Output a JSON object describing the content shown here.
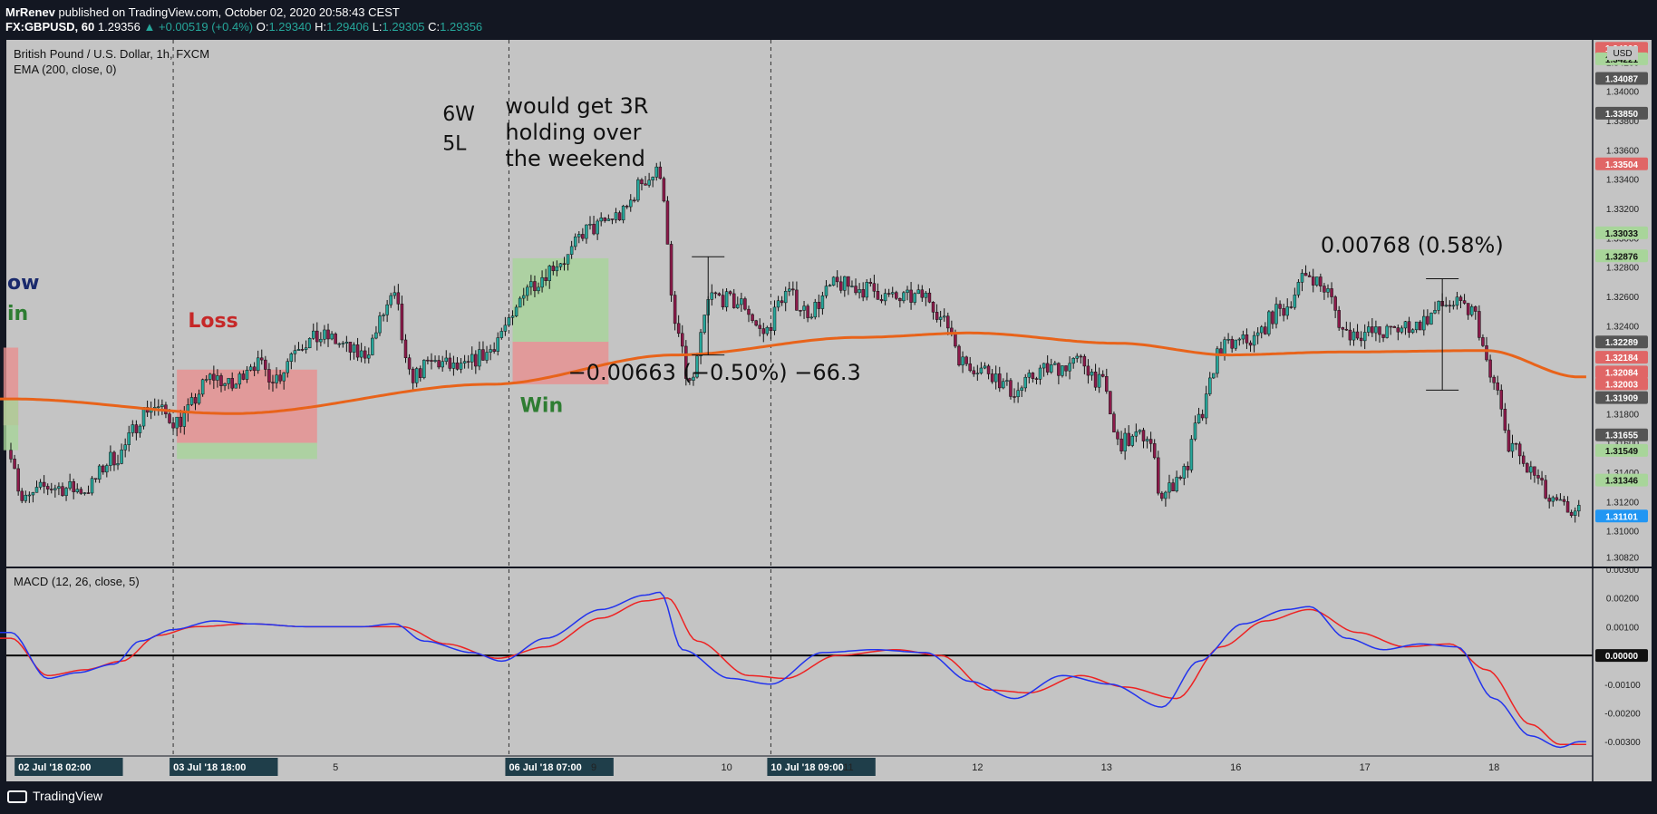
{
  "header": {
    "author": "MrRenev",
    "published_text": "published on TradingView.com, October 02, 2020 20:58:43 CEST",
    "symbol": "FX:GBPUSD, 60",
    "last": "1.29356",
    "change": "+0.00519 (+0.4%)",
    "o_label": "O:",
    "o": "1.29340",
    "h_label": "H:",
    "h": "1.29406",
    "l_label": "L:",
    "l": "1.29305",
    "c_label": "C:",
    "c": "1.29356"
  },
  "footer": {
    "brand": "TradingView"
  },
  "colors": {
    "bg": "#c4c4c4",
    "frame": "#131722",
    "up": "#26a69a",
    "down": "#8b1a4a",
    "ema": "#e8631a",
    "macd": "#2233ee",
    "signal": "#ee2222",
    "loss_zone": "#e89090",
    "win_zone": "#a8d59a"
  },
  "chart_data": [
    {
      "type": "candlestick",
      "title": "British Pound / U.S. Dollar, 1h, FXCM",
      "indicator": "EMA (200, close, 0)",
      "currency": "USD",
      "ylim": [
        1.3075,
        1.3435
      ],
      "y_ticks": [
        "1.30820",
        "1.31000",
        "1.31200",
        "1.31400",
        "1.31600",
        "1.31800",
        "1.32000",
        "1.32200",
        "1.32400",
        "1.32600",
        "1.32800",
        "1.33000",
        "1.33200",
        "1.33400",
        "1.33600",
        "1.33800",
        "1.34000",
        "1.34200",
        "1.34400"
      ],
      "price_labels": [
        {
          "value": "1.34293",
          "color": "#e06666"
        },
        {
          "value": "1.34221",
          "color": "#a8d59a"
        },
        {
          "value": "1.34087",
          "color": "#555555"
        },
        {
          "value": "1.33850",
          "color": "#555555"
        },
        {
          "value": "1.33504",
          "color": "#e06666"
        },
        {
          "value": "1.33033",
          "color": "#a8d59a"
        },
        {
          "value": "1.32876",
          "color": "#a8d59a"
        },
        {
          "value": "1.32289",
          "color": "#555555"
        },
        {
          "value": "1.32184",
          "color": "#e06666"
        },
        {
          "value": "1.32084",
          "color": "#e06666"
        },
        {
          "value": "1.32003",
          "color": "#e06666"
        },
        {
          "value": "1.31909",
          "color": "#555555"
        },
        {
          "value": "1.31655",
          "color": "#555555"
        },
        {
          "value": "1.31549",
          "color": "#a8d59a"
        },
        {
          "value": "1.31346",
          "color": "#a8d59a"
        },
        {
          "value": "1.31101",
          "color": "#2196f3"
        }
      ],
      "price_anchors": [
        [
          0,
          1.3155
        ],
        [
          3,
          1.312
        ],
        [
          10,
          1.313
        ],
        [
          20,
          1.3128
        ],
        [
          28,
          1.315
        ],
        [
          38,
          1.3185
        ],
        [
          45,
          1.3175
        ],
        [
          55,
          1.3205
        ],
        [
          60,
          1.3198
        ],
        [
          65,
          1.3215
        ],
        [
          72,
          1.3205
        ],
        [
          78,
          1.3228
        ],
        [
          85,
          1.3232
        ],
        [
          95,
          1.322
        ],
        [
          104,
          1.3258
        ],
        [
          108,
          1.3205
        ],
        [
          115,
          1.3215
        ],
        [
          122,
          1.321
        ],
        [
          128,
          1.322
        ],
        [
          135,
          1.324
        ],
        [
          140,
          1.3268
        ],
        [
          150,
          1.3285
        ],
        [
          156,
          1.3305
        ],
        [
          165,
          1.3315
        ],
        [
          172,
          1.334
        ],
        [
          176,
          1.3345
        ],
        [
          180,
          1.324
        ],
        [
          184,
          1.32
        ],
        [
          190,
          1.326
        ],
        [
          198,
          1.3255
        ],
        [
          204,
          1.3235
        ],
        [
          210,
          1.3262
        ],
        [
          216,
          1.325
        ],
        [
          224,
          1.3268
        ],
        [
          232,
          1.3265
        ],
        [
          240,
          1.3258
        ],
        [
          248,
          1.326
        ],
        [
          254,
          1.324
        ],
        [
          258,
          1.3215
        ],
        [
          264,
          1.321
        ],
        [
          272,
          1.3195
        ],
        [
          280,
          1.321
        ],
        [
          290,
          1.3215
        ],
        [
          296,
          1.32
        ],
        [
          300,
          1.316
        ],
        [
          308,
          1.3165
        ],
        [
          312,
          1.3125
        ],
        [
          318,
          1.314
        ],
        [
          322,
          1.3175
        ],
        [
          328,
          1.3225
        ],
        [
          336,
          1.323
        ],
        [
          344,
          1.325
        ],
        [
          352,
          1.3275
        ],
        [
          356,
          1.3265
        ],
        [
          362,
          1.3235
        ],
        [
          372,
          1.3235
        ],
        [
          380,
          1.324
        ],
        [
          390,
          1.3255
        ],
        [
          396,
          1.325
        ],
        [
          402,
          1.32
        ],
        [
          406,
          1.316
        ],
        [
          412,
          1.314
        ],
        [
          418,
          1.3118
        ],
        [
          425,
          1.3112
        ]
      ],
      "ema_anchors": [
        [
          0,
          1.319
        ],
        [
          60,
          1.318
        ],
        [
          130,
          1.32
        ],
        [
          180,
          1.322
        ],
        [
          230,
          1.3232
        ],
        [
          260,
          1.3235
        ],
        [
          300,
          1.3228
        ],
        [
          330,
          1.322
        ],
        [
          360,
          1.3222
        ],
        [
          400,
          1.3223
        ],
        [
          425,
          1.3205
        ]
      ],
      "x_ticks": [
        {
          "label": "02 Jul '18   02:00",
          "index": 2,
          "highlight": true
        },
        {
          "label": "03 Jul '18   18:00",
          "index": 44,
          "highlight": true
        },
        {
          "label": "5",
          "index": 88,
          "highlight": false
        },
        {
          "label": "06 Jul '18   07:00",
          "index": 135,
          "highlight": true
        },
        {
          "label": "9",
          "index": 158,
          "highlight": false
        },
        {
          "label": "10",
          "index": 194,
          "highlight": false
        },
        {
          "label": "10 Jul '18   09:00",
          "index": 206,
          "highlight": true
        },
        {
          "label": "11",
          "index": 227,
          "highlight": false
        },
        {
          "label": "12",
          "index": 262,
          "highlight": false
        },
        {
          "label": "13",
          "index": 297,
          "highlight": false
        },
        {
          "label": "16",
          "index": 332,
          "highlight": false
        },
        {
          "label": "17",
          "index": 367,
          "highlight": false
        },
        {
          "label": "18",
          "index": 402,
          "highlight": false
        }
      ],
      "vlines": [
        44,
        135,
        206
      ],
      "zones": [
        {
          "kind": "loss",
          "i0": -2,
          "i1": 2,
          "y0": 1.3172,
          "y1": 1.3225
        },
        {
          "kind": "win",
          "i0": -2,
          "i1": 2,
          "y0": 1.3155,
          "y1": 1.319
        },
        {
          "kind": "loss",
          "i0": 45,
          "i1": 83,
          "y0": 1.316,
          "y1": 1.321
        },
        {
          "kind": "win",
          "i0": 45,
          "i1": 83,
          "y0": 1.3149,
          "y1": 1.316
        },
        {
          "kind": "win",
          "i0": 136,
          "i1": 162,
          "y0": 1.3229,
          "y1": 1.3286
        },
        {
          "kind": "loss",
          "i0": 136,
          "i1": 162,
          "y0": 1.32,
          "y1": 1.3229
        }
      ],
      "annotations": [
        {
          "text": "ow",
          "i": -1,
          "y": 1.3265,
          "color": "#1a2a6c"
        },
        {
          "text": "in",
          "i": -1,
          "y": 1.3244,
          "color": "#2e7d32"
        },
        {
          "text": "Loss",
          "i": 48,
          "y": 1.3239,
          "color": "#c62828"
        },
        {
          "text": "6W",
          "i": 117,
          "y": 1.338,
          "color": "#111111"
        },
        {
          "text": "5L",
          "i": 117,
          "y": 1.336,
          "color": "#111111"
        },
        {
          "text": "would get 3R",
          "i": 134,
          "y": 1.3385,
          "color": "#111111"
        },
        {
          "text": "holding over",
          "i": 134,
          "y": 1.3367,
          "color": "#111111"
        },
        {
          "text": "the weekend",
          "i": 134,
          "y": 1.3349,
          "color": "#111111"
        },
        {
          "text": "Win",
          "i": 138,
          "y": 1.3181,
          "color": "#2e7d32"
        },
        {
          "text": "−0.00663 (−0.50%) −66.3",
          "i": 151,
          "y": 1.3203,
          "color": "#111111"
        },
        {
          "text": "0.00768 (0.58%)",
          "i": 355,
          "y": 1.329,
          "color": "#111111"
        }
      ],
      "measures": [
        {
          "i": 189,
          "top": 1.3287,
          "bottom": 1.322
        },
        {
          "i": 388,
          "top": 1.3272,
          "bottom": 1.3196
        }
      ]
    },
    {
      "type": "line",
      "title": "MACD (12, 26, close, 5)",
      "ylim": [
        -0.0035,
        0.003
      ],
      "y_ticks": [
        "0.00300",
        "0.00200",
        "0.00100",
        "0.00000",
        "-0.00100",
        "-0.00200",
        "-0.00300"
      ],
      "zero_label": "0.00000",
      "macd_anchors": [
        [
          0,
          0.0008
        ],
        [
          10,
          -0.0008
        ],
        [
          18,
          -0.0006
        ],
        [
          28,
          -0.0003
        ],
        [
          35,
          0.0005
        ],
        [
          44,
          0.0009
        ],
        [
          55,
          0.0012
        ],
        [
          65,
          0.0011
        ],
        [
          80,
          0.001
        ],
        [
          95,
          0.001
        ],
        [
          104,
          0.0011
        ],
        [
          112,
          0.0005
        ],
        [
          125,
          0.0001
        ],
        [
          133,
          -0.0002
        ],
        [
          145,
          0.0006
        ],
        [
          160,
          0.0016
        ],
        [
          172,
          0.0021
        ],
        [
          176,
          0.0022
        ],
        [
          182,
          0.0002
        ],
        [
          195,
          -0.0008
        ],
        [
          206,
          -0.001
        ],
        [
          220,
          0.0001
        ],
        [
          234,
          0.0002
        ],
        [
          248,
          0.0001
        ],
        [
          260,
          -0.0009
        ],
        [
          272,
          -0.0015
        ],
        [
          285,
          -0.0007
        ],
        [
          298,
          -0.001
        ],
        [
          312,
          -0.0018
        ],
        [
          322,
          -0.0002
        ],
        [
          334,
          0.0011
        ],
        [
          346,
          0.0016
        ],
        [
          352,
          0.0017
        ],
        [
          362,
          0.0006
        ],
        [
          372,
          0.0002
        ],
        [
          382,
          0.0004
        ],
        [
          392,
          0.0003
        ],
        [
          402,
          -0.0015
        ],
        [
          412,
          -0.0028
        ],
        [
          420,
          -0.0032
        ],
        [
          425,
          -0.003
        ]
      ],
      "signal_anchors": [
        [
          0,
          0.0006
        ],
        [
          10,
          -0.0007
        ],
        [
          20,
          -0.0005
        ],
        [
          30,
          -0.0002
        ],
        [
          40,
          0.0007
        ],
        [
          50,
          0.001
        ],
        [
          65,
          0.0011
        ],
        [
          80,
          0.001
        ],
        [
          95,
          0.001
        ],
        [
          106,
          0.001
        ],
        [
          118,
          0.0004
        ],
        [
          132,
          -0.0001
        ],
        [
          145,
          0.0003
        ],
        [
          160,
          0.0013
        ],
        [
          172,
          0.0019
        ],
        [
          178,
          0.002
        ],
        [
          186,
          0.0005
        ],
        [
          200,
          -0.0007
        ],
        [
          210,
          -0.0008
        ],
        [
          224,
          0.0
        ],
        [
          240,
          0.0002
        ],
        [
          252,
          0.0
        ],
        [
          265,
          -0.0012
        ],
        [
          276,
          -0.0013
        ],
        [
          290,
          -0.0007
        ],
        [
          302,
          -0.0011
        ],
        [
          316,
          -0.0015
        ],
        [
          328,
          0.0003
        ],
        [
          340,
          0.0012
        ],
        [
          352,
          0.0016
        ],
        [
          365,
          0.0008
        ],
        [
          378,
          0.0003
        ],
        [
          390,
          0.0004
        ],
        [
          400,
          -0.0005
        ],
        [
          412,
          -0.0024
        ],
        [
          420,
          -0.0031
        ],
        [
          425,
          -0.0031
        ]
      ]
    }
  ]
}
